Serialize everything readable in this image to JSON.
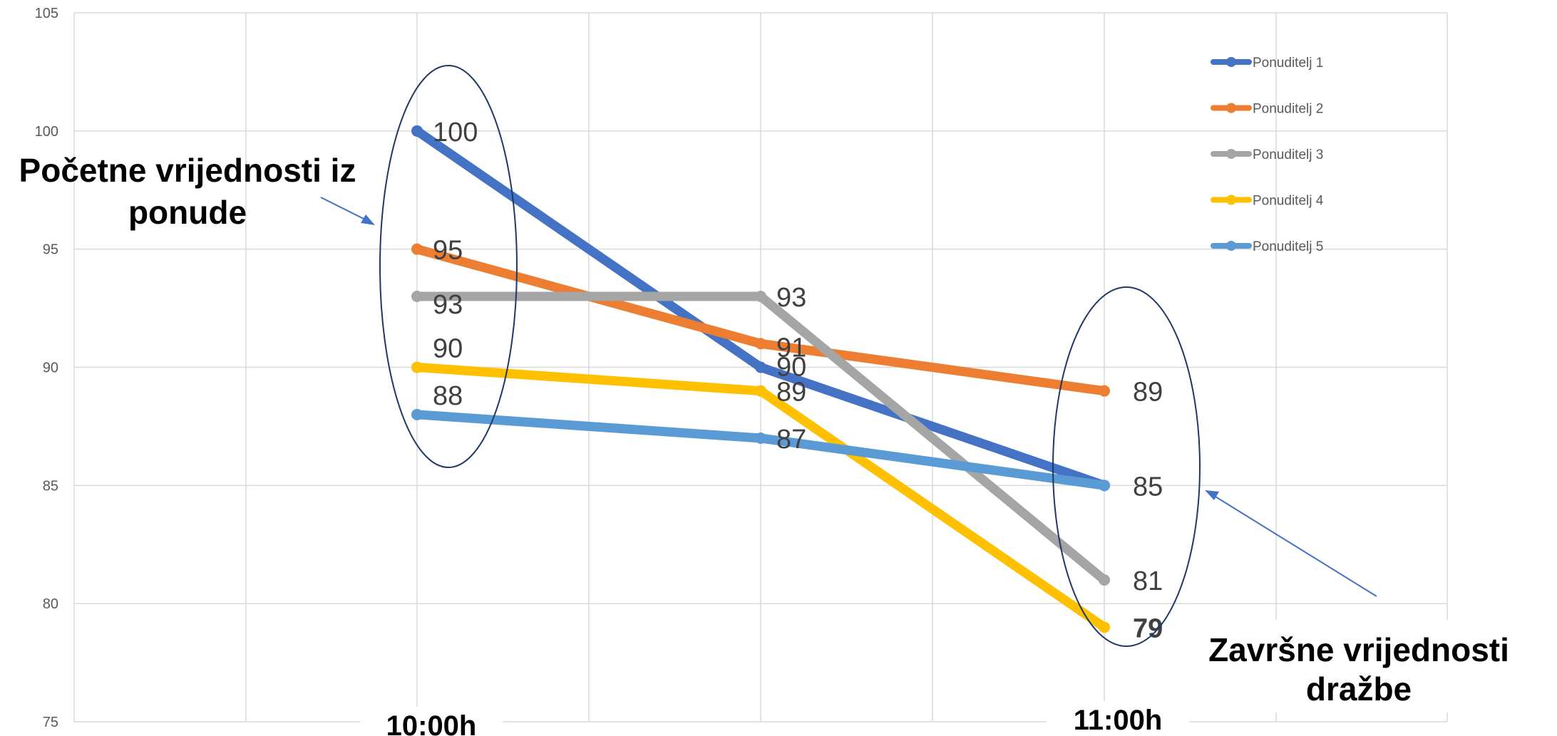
{
  "chart_data": {
    "type": "line",
    "x": [
      "10:00h",
      "",
      "11:00h"
    ],
    "x_tick_labels": [
      "10:00h",
      "11:00h"
    ],
    "ylim": [
      75,
      105
    ],
    "y_ticks": [
      "75",
      "80",
      "85",
      "90",
      "95",
      "100",
      "105"
    ],
    "grid": true,
    "legend_position": "top-right",
    "series": [
      {
        "name": "Ponuditelj 1",
        "color": "#4472C4",
        "values": [
          100,
          90,
          85
        ],
        "labels": [
          "100",
          "90",
          "85"
        ]
      },
      {
        "name": "Ponuditelj 2",
        "color": "#ED7D31",
        "values": [
          95,
          91,
          89
        ],
        "labels": [
          "95",
          "91",
          "89"
        ]
      },
      {
        "name": "Ponuditelj 3",
        "color": "#A5A5A5",
        "values": [
          93,
          93,
          81
        ],
        "labels": [
          "93",
          "93",
          "81"
        ]
      },
      {
        "name": "Ponuditelj 4",
        "color": "#FFC000",
        "values": [
          90,
          89,
          79
        ],
        "labels": [
          "90",
          "89",
          "79"
        ]
      },
      {
        "name": "Ponuditelj 5",
        "color": "#5B9BD5",
        "values": [
          88,
          87,
          85
        ],
        "labels": [
          "88",
          "87",
          ""
        ]
      }
    ],
    "annotations": {
      "start": [
        "Početne vrijednosti iz",
        "ponude"
      ],
      "end": [
        "Završne vrijednosti",
        "dražbe"
      ]
    }
  }
}
